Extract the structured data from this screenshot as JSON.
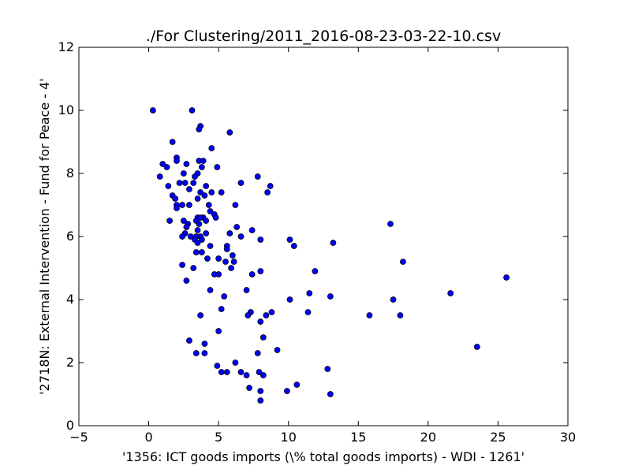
{
  "chart_data": {
    "type": "scatter",
    "title": "./For Clustering/2011_2016-08-23-03-22-10.csv",
    "xlabel": "'1356: ICT goods imports  (\\% total goods imports) - WDI - 1261'",
    "ylabel": "'2718N: External Intervention - Fund for Peace - 4'",
    "xlim": [
      -5,
      30
    ],
    "ylim": [
      0,
      12
    ],
    "xticks": [
      -5,
      0,
      5,
      10,
      15,
      20,
      25,
      30
    ],
    "yticks": [
      0,
      2,
      4,
      6,
      8,
      10,
      12
    ],
    "grid": false,
    "marker_color": "#0000ff",
    "marker_edge": "#000000",
    "points": [
      [
        0.3,
        10.0
      ],
      [
        3.1,
        10.0
      ],
      [
        3.7,
        9.5
      ],
      [
        3.6,
        9.4
      ],
      [
        5.8,
        9.3
      ],
      [
        1.7,
        9.0
      ],
      [
        4.5,
        8.8
      ],
      [
        2.0,
        8.5
      ],
      [
        2.0,
        8.4
      ],
      [
        3.6,
        8.4
      ],
      [
        3.9,
        8.4
      ],
      [
        1.0,
        8.3
      ],
      [
        2.7,
        8.3
      ],
      [
        1.3,
        8.2
      ],
      [
        4.9,
        8.2
      ],
      [
        3.8,
        8.2
      ],
      [
        2.5,
        8.0
      ],
      [
        3.5,
        8.0
      ],
      [
        0.8,
        7.9
      ],
      [
        3.3,
        7.9
      ],
      [
        7.8,
        7.9
      ],
      [
        2.2,
        7.7
      ],
      [
        2.6,
        7.7
      ],
      [
        3.2,
        7.7
      ],
      [
        6.6,
        7.7
      ],
      [
        1.4,
        7.6
      ],
      [
        2.9,
        7.5
      ],
      [
        4.1,
        7.6
      ],
      [
        8.7,
        7.6
      ],
      [
        3.7,
        7.4
      ],
      [
        4.5,
        7.4
      ],
      [
        5.2,
        7.4
      ],
      [
        8.5,
        7.4
      ],
      [
        1.7,
        7.3
      ],
      [
        4.0,
        7.3
      ],
      [
        1.9,
        7.2
      ],
      [
        3.5,
        7.2
      ],
      [
        2.0,
        7.0
      ],
      [
        2.4,
        7.0
      ],
      [
        2.9,
        7.0
      ],
      [
        4.3,
        7.0
      ],
      [
        6.2,
        7.0
      ],
      [
        2.0,
        6.9
      ],
      [
        4.4,
        6.8
      ],
      [
        4.7,
        6.7
      ],
      [
        3.5,
        6.6
      ],
      [
        3.9,
        6.6
      ],
      [
        3.7,
        6.6
      ],
      [
        4.8,
        6.6
      ],
      [
        1.5,
        6.5
      ],
      [
        2.5,
        6.5
      ],
      [
        3.4,
        6.5
      ],
      [
        4.1,
        6.5
      ],
      [
        2.8,
        6.4
      ],
      [
        3.6,
        6.4
      ],
      [
        2.7,
        6.3
      ],
      [
        3.5,
        6.2
      ],
      [
        6.3,
        6.3
      ],
      [
        7.4,
        6.2
      ],
      [
        17.3,
        6.4
      ],
      [
        2.6,
        6.1
      ],
      [
        4.1,
        6.1
      ],
      [
        5.8,
        6.1
      ],
      [
        2.4,
        6.0
      ],
      [
        3.0,
        6.0
      ],
      [
        3.4,
        6.0
      ],
      [
        3.7,
        6.0
      ],
      [
        6.6,
        6.0
      ],
      [
        3.3,
        5.9
      ],
      [
        3.8,
        5.9
      ],
      [
        8.0,
        5.9
      ],
      [
        10.1,
        5.9
      ],
      [
        3.5,
        5.8
      ],
      [
        13.2,
        5.8
      ],
      [
        4.4,
        5.7
      ],
      [
        5.6,
        5.7
      ],
      [
        10.4,
        5.7
      ],
      [
        5.6,
        5.6
      ],
      [
        3.4,
        5.5
      ],
      [
        3.8,
        5.5
      ],
      [
        6.0,
        5.4
      ],
      [
        4.2,
        5.3
      ],
      [
        5.0,
        5.3
      ],
      [
        5.5,
        5.2
      ],
      [
        6.1,
        5.2
      ],
      [
        18.2,
        5.2
      ],
      [
        2.4,
        5.1
      ],
      [
        3.2,
        5.0
      ],
      [
        5.9,
        5.0
      ],
      [
        4.7,
        4.8
      ],
      [
        5.0,
        4.8
      ],
      [
        7.4,
        4.8
      ],
      [
        8.0,
        4.9
      ],
      [
        11.9,
        4.9
      ],
      [
        25.6,
        4.7
      ],
      [
        2.7,
        4.6
      ],
      [
        7.0,
        4.3
      ],
      [
        4.4,
        4.3
      ],
      [
        11.5,
        4.2
      ],
      [
        21.6,
        4.2
      ],
      [
        5.4,
        4.1
      ],
      [
        13.0,
        4.1
      ],
      [
        10.1,
        4.0
      ],
      [
        17.5,
        4.0
      ],
      [
        5.2,
        3.7
      ],
      [
        7.3,
        3.6
      ],
      [
        8.8,
        3.6
      ],
      [
        11.4,
        3.6
      ],
      [
        3.7,
        3.5
      ],
      [
        7.1,
        3.5
      ],
      [
        8.4,
        3.5
      ],
      [
        15.8,
        3.5
      ],
      [
        18.0,
        3.5
      ],
      [
        8.0,
        3.3
      ],
      [
        5.0,
        3.0
      ],
      [
        8.2,
        2.8
      ],
      [
        2.9,
        2.7
      ],
      [
        4.0,
        2.6
      ],
      [
        23.5,
        2.5
      ],
      [
        9.2,
        2.4
      ],
      [
        3.4,
        2.3
      ],
      [
        4.0,
        2.3
      ],
      [
        7.8,
        2.3
      ],
      [
        6.2,
        2.0
      ],
      [
        4.9,
        1.9
      ],
      [
        12.8,
        1.8
      ],
      [
        5.2,
        1.7
      ],
      [
        5.6,
        1.7
      ],
      [
        6.6,
        1.7
      ],
      [
        7.9,
        1.7
      ],
      [
        7.0,
        1.6
      ],
      [
        8.2,
        1.6
      ],
      [
        10.6,
        1.3
      ],
      [
        7.2,
        1.2
      ],
      [
        9.9,
        1.1
      ],
      [
        8.0,
        1.1
      ],
      [
        13.0,
        1.0
      ],
      [
        8.0,
        0.8
      ]
    ]
  }
}
